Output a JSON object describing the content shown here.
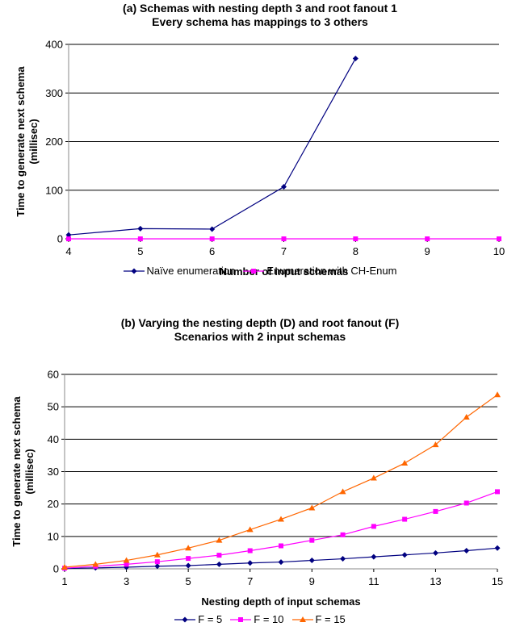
{
  "chart_data": [
    {
      "type": "line",
      "title": "(a)   Schemas with nesting depth 3 and root fanout 1",
      "subtitle": "Every schema has mappings to 3 others",
      "xlabel": "Number of input schemas",
      "ylabel": "Time to generate next schema (millisec)",
      "ylabel_lines": [
        "Time to generate next schema",
        "(millisec)"
      ],
      "xlim": [
        4,
        10
      ],
      "ylim": [
        0,
        400
      ],
      "xticks": [
        4,
        5,
        6,
        7,
        8,
        9,
        10
      ],
      "yticks": [
        0,
        100,
        200,
        300,
        400
      ],
      "grid": "horizontal",
      "legend_position": "bottom",
      "series": [
        {
          "name": "Naïve enumeration",
          "color": "#000080",
          "marker": "diamond",
          "x": [
            4,
            5,
            6,
            7,
            8
          ],
          "y": [
            8,
            21,
            20,
            107,
            371
          ]
        },
        {
          "name": "Enumeration with CH-Enum",
          "color": "#ff00ff",
          "marker": "square",
          "x": [
            4,
            5,
            6,
            7,
            8,
            9,
            10
          ],
          "y": [
            0,
            0,
            0,
            0,
            0,
            0,
            0
          ]
        }
      ]
    },
    {
      "type": "line",
      "title": "(b)   Varying the nesting depth (D) and root fanout (F)",
      "subtitle": "Scenarios with 2 input schemas",
      "xlabel": "Nesting depth of input schemas",
      "ylabel": "Time to generate next schema (millisec)",
      "ylabel_lines": [
        "Time to generate next schema",
        "(millisec)"
      ],
      "xlim": [
        1,
        15
      ],
      "ylim": [
        0,
        60
      ],
      "xticks": [
        1,
        3,
        5,
        7,
        9,
        11,
        13,
        15
      ],
      "yticks": [
        0,
        10,
        20,
        30,
        40,
        50,
        60
      ],
      "grid": "horizontal",
      "legend_position": "bottom",
      "series": [
        {
          "name": "F = 5",
          "color": "#000080",
          "marker": "diamond",
          "x": [
            1,
            2,
            3,
            4,
            5,
            6,
            7,
            8,
            9,
            10,
            11,
            12,
            13,
            14,
            15
          ],
          "y": [
            0.1,
            0.3,
            0.5,
            0.8,
            1.0,
            1.4,
            1.8,
            2.1,
            2.6,
            3.1,
            3.7,
            4.3,
            4.9,
            5.6,
            6.4
          ]
        },
        {
          "name": "F = 10",
          "color": "#ff00ff",
          "marker": "square",
          "x": [
            1,
            2,
            3,
            4,
            5,
            6,
            7,
            8,
            9,
            10,
            11,
            12,
            13,
            14,
            15
          ],
          "y": [
            0.2,
            0.8,
            1.4,
            2.2,
            3.2,
            4.2,
            5.6,
            7.1,
            8.8,
            10.5,
            13.1,
            15.3,
            17.7,
            20.3,
            23.8
          ]
        },
        {
          "name": "F = 15",
          "color": "#ff6600",
          "marker": "triangle",
          "x": [
            1,
            2,
            3,
            4,
            5,
            6,
            7,
            8,
            9,
            10,
            11,
            12,
            13,
            14,
            15
          ],
          "y": [
            0.5,
            1.4,
            2.6,
            4.3,
            6.4,
            8.8,
            12.1,
            15.3,
            18.8,
            23.8,
            28.0,
            32.6,
            38.3,
            46.8,
            53.7
          ]
        }
      ]
    }
  ]
}
